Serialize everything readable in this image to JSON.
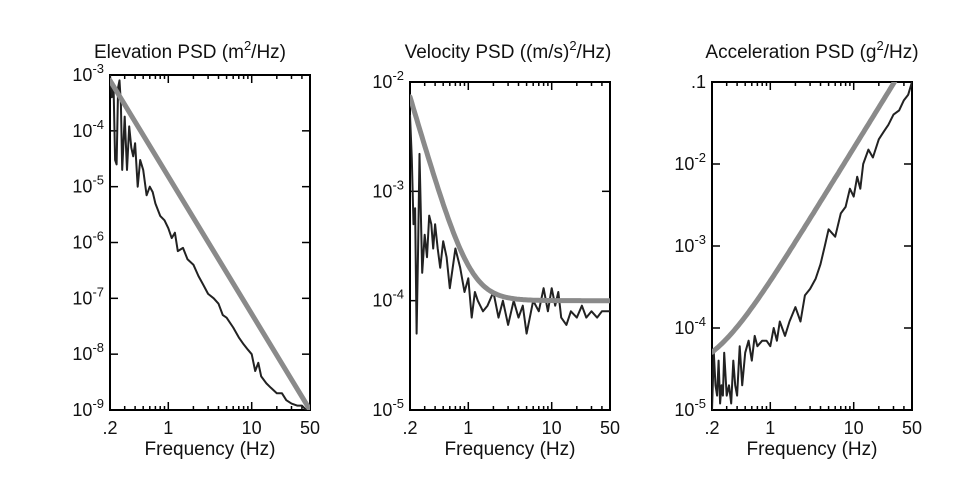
{
  "chart_data": [
    {
      "type": "line",
      "title": "Elevation PSD (m2/Hz)",
      "title_parts": {
        "pre": "Elevation PSD (m",
        "sup": "2",
        "post": "/Hz)"
      },
      "xlabel": "Frequency (Hz)",
      "x_scale": "log",
      "y_scale": "log",
      "xlim": [
        0.2,
        50
      ],
      "ylim": [
        1e-09,
        0.001
      ],
      "x_ticks": [
        0.2,
        1,
        10,
        50
      ],
      "x_tick_labels": [
        ".2",
        "1",
        "10",
        "50"
      ],
      "y_ticks": [
        1e-09,
        1e-08,
        1e-07,
        1e-06,
        1e-05,
        0.0001,
        0.001
      ],
      "y_tick_labels": [
        {
          "base": "10",
          "exp": "-9"
        },
        {
          "base": "10",
          "exp": "-8"
        },
        {
          "base": "10",
          "exp": "-7"
        },
        {
          "base": "10",
          "exp": "-6"
        },
        {
          "base": "10",
          "exp": "-5"
        },
        {
          "base": "10",
          "exp": "-4"
        },
        {
          "base": "10",
          "exp": "-3"
        }
      ],
      "series": [
        {
          "kind": "measured",
          "x": [
            0.2,
            0.21,
            0.22,
            0.23,
            0.24,
            0.25,
            0.26,
            0.27,
            0.28,
            0.3,
            0.32,
            0.34,
            0.36,
            0.38,
            0.4,
            0.43,
            0.46,
            0.5,
            0.55,
            0.6,
            0.65,
            0.7,
            0.8,
            0.9,
            1,
            1.1,
            1.2,
            1.3,
            1.5,
            1.7,
            2,
            2.3,
            2.6,
            3,
            3.5,
            4,
            4.5,
            5,
            6,
            7,
            8,
            9,
            10,
            11,
            12,
            13,
            15,
            17,
            20,
            23,
            26,
            30,
            35,
            40,
            45,
            50
          ],
          "y": [
            0.001,
            0.0004,
            0.0007,
            3e-05,
            2.5e-05,
            0.0006,
            0.0008,
            0.0003,
            2e-05,
            0.00018,
            2e-05,
            0.00012,
            5e-05,
            3.5e-05,
            6e-05,
            1e-05,
            3e-05,
            2e-05,
            7e-06,
            1e-05,
            8e-06,
            5e-06,
            3e-06,
            2.5e-06,
            1.8e-06,
            1.2e-06,
            1.5e-06,
            7e-07,
            8e-07,
            5e-07,
            4e-07,
            2.5e-07,
            1.8e-07,
            1.2e-07,
            1e-07,
            8e-08,
            5e-08,
            4.5e-08,
            3e-08,
            2e-08,
            1.5e-08,
            1.2e-08,
            1e-08,
            5e-09,
            7e-09,
            4e-09,
            3e-09,
            2.5e-09,
            2e-09,
            2e-09,
            1.5e-09,
            1.3e-09,
            1.2e-09,
            1.2e-09,
            1e-09,
            1e-09
          ]
        },
        {
          "kind": "fit",
          "x": [
            0.2,
            50
          ],
          "y": [
            0.0008,
            1e-09
          ]
        }
      ]
    },
    {
      "type": "line",
      "title": "Velocity PSD ((m/s)2/Hz)",
      "title_parts": {
        "pre": "Velocity PSD ((m/s)",
        "sup": "2",
        "post": "/Hz)"
      },
      "xlabel": "Frequency (Hz)",
      "x_scale": "log",
      "y_scale": "log",
      "xlim": [
        0.2,
        50
      ],
      "ylim": [
        1e-05,
        0.01
      ],
      "x_ticks": [
        0.2,
        1,
        10,
        50
      ],
      "x_tick_labels": [
        ".2",
        "1",
        "10",
        "50"
      ],
      "y_ticks": [
        1e-05,
        0.0001,
        0.001,
        0.01
      ],
      "y_tick_labels": [
        {
          "base": "10",
          "exp": "-5"
        },
        {
          "base": "10",
          "exp": "-4"
        },
        {
          "base": "10",
          "exp": "-3"
        },
        {
          "base": "10",
          "exp": "-2"
        }
      ],
      "series": [
        {
          "kind": "measured",
          "x": [
            0.2,
            0.21,
            0.22,
            0.23,
            0.24,
            0.25,
            0.26,
            0.27,
            0.28,
            0.3,
            0.32,
            0.34,
            0.36,
            0.38,
            0.4,
            0.43,
            0.46,
            0.5,
            0.55,
            0.6,
            0.65,
            0.7,
            0.8,
            0.9,
            1,
            1.1,
            1.2,
            1.3,
            1.5,
            1.7,
            2,
            2.3,
            2.6,
            3,
            3.5,
            4,
            4.5,
            5,
            6,
            7,
            8,
            9,
            10,
            11,
            12,
            13,
            15,
            17,
            20,
            23,
            26,
            30,
            35,
            40,
            45,
            50
          ],
          "y": [
            0.005,
            0.002,
            0.0005,
            0.0007,
            5e-05,
            0.0003,
            0.0022,
            0.0006,
            0.00018,
            0.0004,
            0.00025,
            0.0006,
            0.0005,
            0.0003,
            0.0005,
            0.0003,
            0.0002,
            0.00035,
            0.00025,
            0.00013,
            0.0002,
            0.0003,
            0.0002,
            0.00012,
            0.00016,
            7e-05,
            0.00012,
            0.0001,
            8e-05,
            9e-05,
            0.00012,
            7e-05,
            0.0001,
            6e-05,
            0.0001,
            7e-05,
            9e-05,
            5e-05,
            0.0001,
            8e-05,
            0.00013,
            8e-05,
            0.00013,
            9e-05,
            0.00012,
            7e-05,
            6e-05,
            8e-05,
            7e-05,
            9e-05,
            7e-05,
            8e-05,
            7e-05,
            8e-05,
            8e-05,
            8e-05
          ]
        },
        {
          "kind": "fit",
          "x": [
            0.2,
            50
          ],
          "b": 0.0001,
          "a": 0.00011,
          "p": 2.6
        }
      ]
    },
    {
      "type": "line",
      "title": "Acceleration PSD (g2/Hz)",
      "title_parts": {
        "pre": "Acceleration PSD (g",
        "sup": "2",
        "post": "/Hz)"
      },
      "xlabel": "Frequency (Hz)",
      "x_scale": "log",
      "y_scale": "log",
      "xlim": [
        0.2,
        50
      ],
      "ylim": [
        1e-05,
        0.1
      ],
      "x_ticks": [
        0.2,
        1,
        10,
        50
      ],
      "x_tick_labels": [
        ".2",
        "1",
        "10",
        "50"
      ],
      "y_ticks": [
        1e-05,
        0.0001,
        0.001,
        0.01,
        0.1
      ],
      "y_tick_labels": [
        {
          "base": "10",
          "exp": "-5"
        },
        {
          "base": "10",
          "exp": "-4"
        },
        {
          "base": "10",
          "exp": "-3"
        },
        {
          "base": "10",
          "exp": "-2"
        },
        {
          "base": ".1",
          "exp": ""
        }
      ],
      "series": [
        {
          "kind": "measured",
          "x": [
            0.2,
            0.21,
            0.22,
            0.23,
            0.24,
            0.25,
            0.26,
            0.27,
            0.28,
            0.3,
            0.32,
            0.34,
            0.36,
            0.38,
            0.4,
            0.43,
            0.46,
            0.5,
            0.55,
            0.6,
            0.65,
            0.7,
            0.8,
            0.9,
            1,
            1.1,
            1.2,
            1.3,
            1.5,
            1.7,
            2,
            2.3,
            2.6,
            3,
            3.5,
            4,
            4.5,
            5,
            6,
            7,
            8,
            9,
            10,
            11,
            12,
            13,
            15,
            17,
            20,
            23,
            26,
            30,
            35,
            40,
            45,
            50
          ],
          "y": [
            1e-05,
            5e-05,
            2e-05,
            1.5e-05,
            4e-05,
            1.2e-05,
            2e-05,
            1.5e-05,
            5e-05,
            1.5e-05,
            2e-05,
            1.2e-05,
            4e-05,
            2e-05,
            1.5e-05,
            6e-05,
            2e-05,
            5e-05,
            7e-05,
            4e-05,
            8e-05,
            6e-05,
            7e-05,
            7e-05,
            6e-05,
            0.0001,
            7e-05,
            0.00012,
            8e-05,
            0.00012,
            0.00018,
            0.00012,
            0.00025,
            0.0003,
            0.0004,
            0.0006,
            0.001,
            0.0016,
            0.0013,
            0.0025,
            0.003,
            0.005,
            0.004,
            0.007,
            0.005,
            0.01,
            0.015,
            0.012,
            0.02,
            0.025,
            0.03,
            0.04,
            0.045,
            0.06,
            0.07,
            0.1
          ]
        },
        {
          "kind": "fit",
          "x": [
            0.2,
            50
          ],
          "b": 2.6e-05,
          "a": 0.00035,
          "p": 1.65
        }
      ]
    }
  ]
}
